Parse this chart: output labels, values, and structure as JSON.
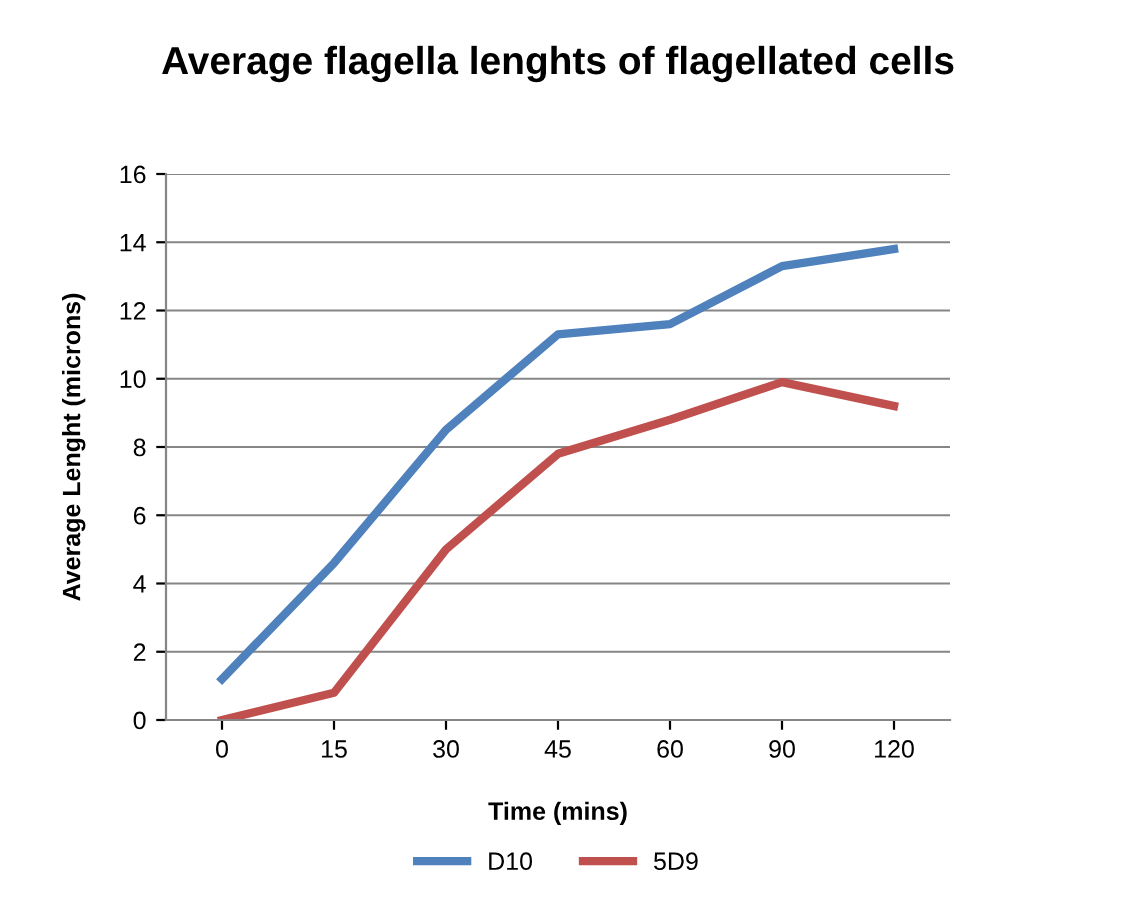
{
  "chart_data": {
    "type": "line",
    "title": "Average flagella lenghts of flagellated cells",
    "xlabel": "Time (mins)",
    "ylabel": "Average Lenght (microns)",
    "categories": [
      "0",
      "15",
      "30",
      "45",
      "60",
      "90",
      "120"
    ],
    "series": [
      {
        "name": "D10",
        "color": "#4f81bd",
        "values": [
          1.2,
          4.6,
          8.5,
          11.3,
          11.6,
          13.3,
          13.8
        ]
      },
      {
        "name": "5D9",
        "color": "#c0504d",
        "values": [
          0,
          0.8,
          5.0,
          7.8,
          8.8,
          9.9,
          9.2
        ]
      }
    ],
    "ylim": [
      0,
      16
    ],
    "yticks": [
      0,
      2,
      4,
      6,
      8,
      10,
      12,
      14,
      16
    ],
    "grid": "y",
    "legend": "bottom",
    "marker": "none",
    "line_style": "solid"
  }
}
